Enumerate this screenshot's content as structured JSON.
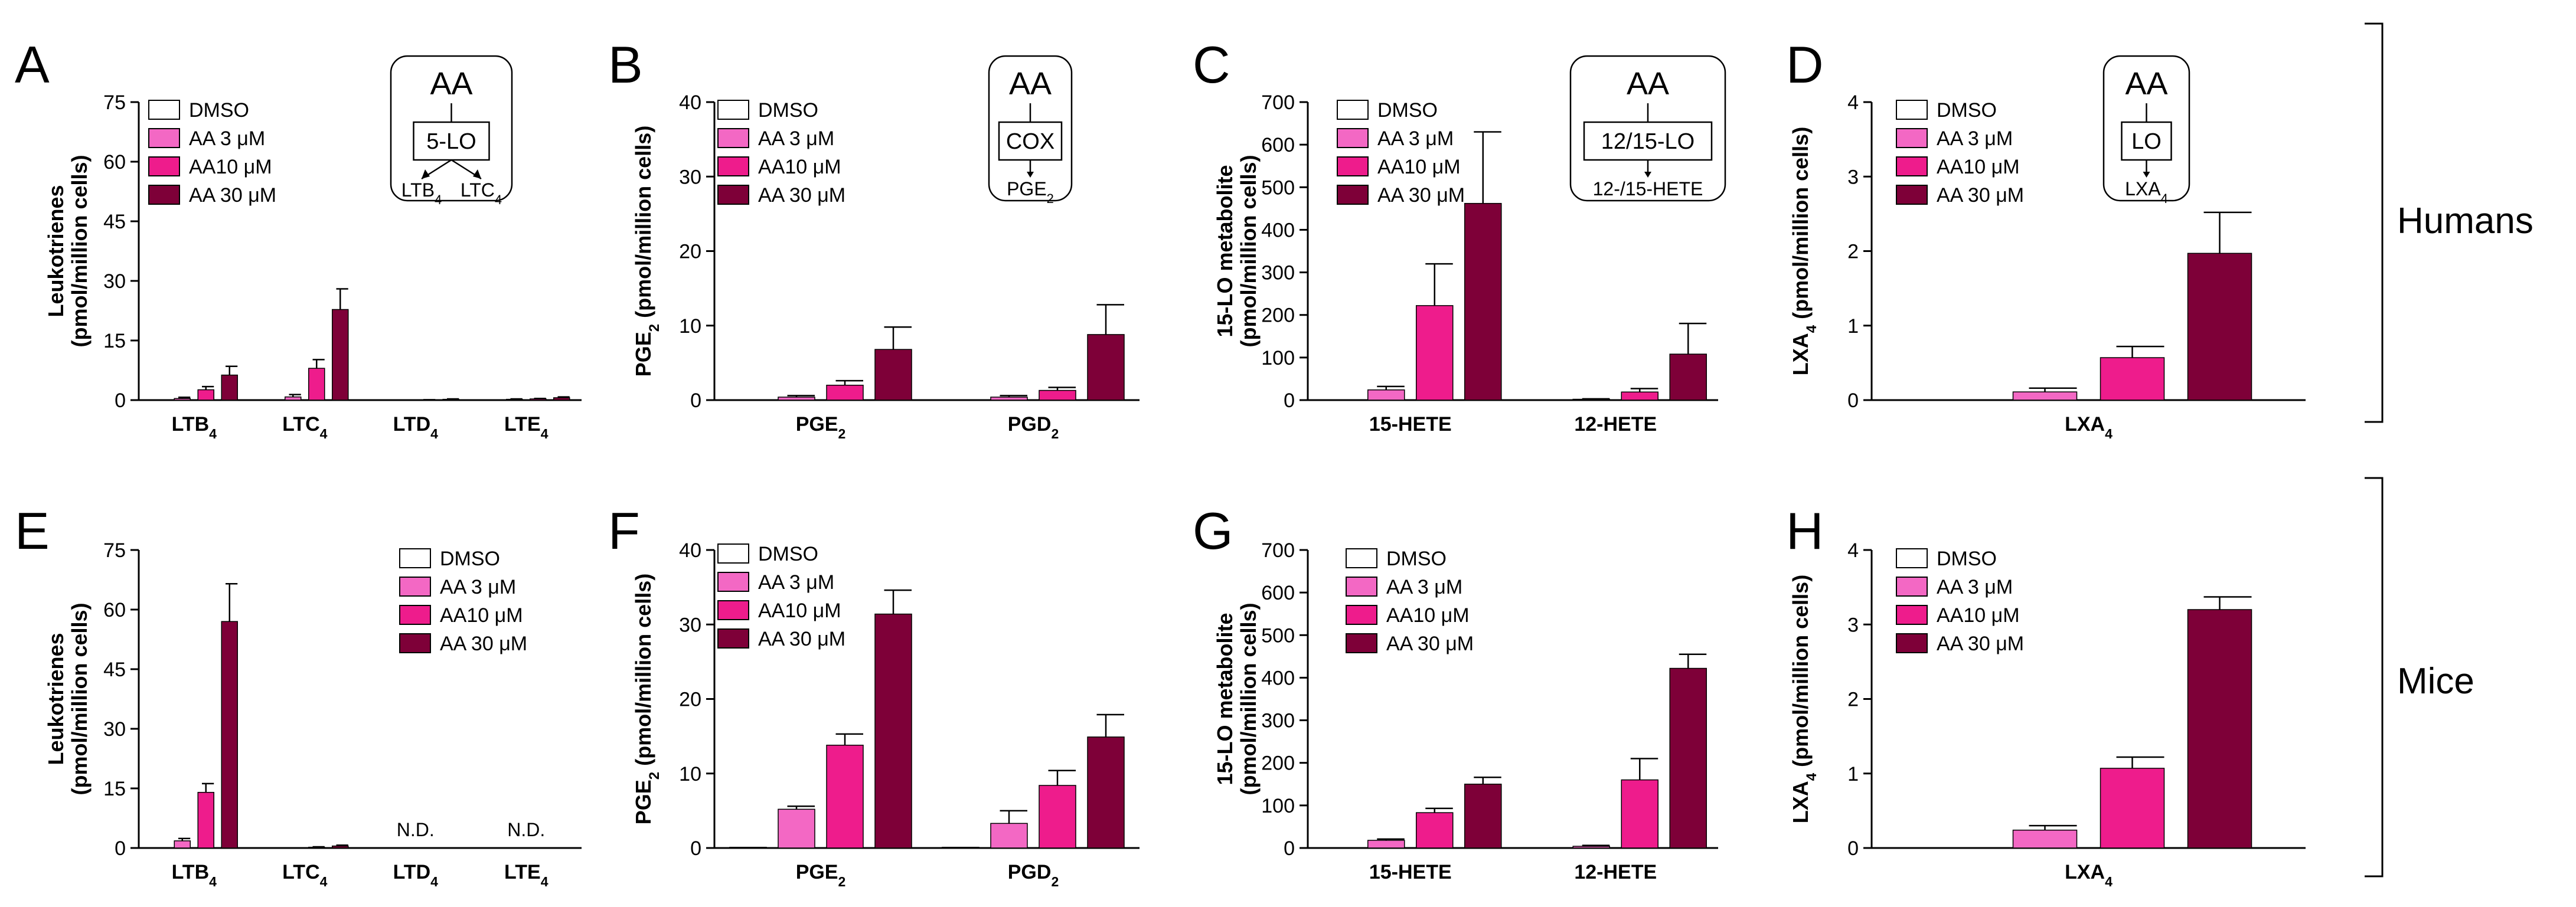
{
  "figure": {
    "group_labels": [
      "Humans",
      "Mice"
    ],
    "colors": {
      "dmso": "#ffffff",
      "aa3": "#f368c4",
      "aa10": "#ee1c8c",
      "aa30": "#7e0038",
      "stroke": "#000000"
    },
    "legend_labels": [
      "DMSO",
      "AA 3 μM",
      "AA10 μM",
      "AA 30 μM"
    ]
  },
  "chart_data": [
    {
      "panel": "A",
      "type": "bar",
      "ylabel": "Leukotrienes",
      "ylabel2": "(pmol/million cells)",
      "ylim": [
        0,
        75
      ],
      "yticks": [
        "0",
        "15",
        "30",
        "45",
        "60",
        "75"
      ],
      "categories": [
        "LTB4",
        "LTC4",
        "LTD4",
        "LTE4"
      ],
      "series": [
        {
          "name": "DMSO",
          "values": [
            0,
            0,
            0,
            0
          ],
          "errors": [
            0,
            0,
            0,
            0
          ]
        },
        {
          "name": "AA 3 μM",
          "values": [
            0.4,
            0.8,
            0,
            0.2
          ],
          "errors": [
            0.3,
            0.6,
            0,
            0.1
          ]
        },
        {
          "name": "AA10 μM",
          "values": [
            2.6,
            8,
            0.05,
            0.3
          ],
          "errors": [
            0.8,
            2.2,
            0.05,
            0.1
          ]
        },
        {
          "name": "AA 30 μM",
          "values": [
            6.3,
            22.8,
            0.2,
            0.6
          ],
          "errors": [
            2.2,
            5.2,
            0.1,
            0.2
          ]
        }
      ],
      "inset": {
        "top": "AA",
        "enzyme": "5-LO",
        "products": [
          "LTB4",
          "LTC4"
        ]
      }
    },
    {
      "panel": "B",
      "type": "bar",
      "ylabel": "PGE2 (pmol/million cells)",
      "ylabel2": "",
      "ylim": [
        0,
        40
      ],
      "yticks": [
        "0",
        "10",
        "20",
        "30",
        "40"
      ],
      "categories": [
        "PGE2",
        "PGD2"
      ],
      "series": [
        {
          "name": "DMSO",
          "values": [
            0,
            0
          ],
          "errors": [
            0,
            0
          ]
        },
        {
          "name": "AA 3 μM",
          "values": [
            0.4,
            0.4
          ],
          "errors": [
            0.2,
            0.2
          ]
        },
        {
          "name": "AA10 μM",
          "values": [
            2,
            1.3
          ],
          "errors": [
            0.6,
            0.4
          ]
        },
        {
          "name": "AA 30 μM",
          "values": [
            6.8,
            8.8
          ],
          "errors": [
            3,
            4
          ]
        }
      ],
      "inset": {
        "top": "AA",
        "enzyme": "COX",
        "products": [
          "PGE2"
        ]
      }
    },
    {
      "panel": "C",
      "type": "bar",
      "ylabel": "15-LO metabolite",
      "ylabel2": "(pmol/million cells)",
      "ylim": [
        0,
        700
      ],
      "yticks": [
        "0",
        "100",
        "200",
        "300",
        "400",
        "500",
        "600",
        "700"
      ],
      "categories": [
        "15-HETE",
        "12-HETE"
      ],
      "series": [
        {
          "name": "DMSO",
          "values": [
            0,
            0
          ],
          "errors": [
            0,
            0
          ]
        },
        {
          "name": "AA 3 μM",
          "values": [
            24,
            2
          ],
          "errors": [
            8,
            1
          ]
        },
        {
          "name": "AA10 μM",
          "values": [
            222,
            19
          ],
          "errors": [
            98,
            8
          ]
        },
        {
          "name": "AA 30 μM",
          "values": [
            462,
            108
          ],
          "errors": [
            168,
            72
          ]
        }
      ],
      "inset": {
        "top": "AA",
        "enzyme": "12/15-LO",
        "products": [
          "12-/15-HETE"
        ]
      }
    },
    {
      "panel": "D",
      "type": "bar",
      "ylabel": "LXA4 (pmol/million cells)",
      "ylabel2": "",
      "ylim": [
        0,
        4
      ],
      "yticks": [
        "0",
        "1",
        "2",
        "3",
        "4"
      ],
      "categories": [
        "LXA4"
      ],
      "series": [
        {
          "name": "DMSO",
          "values": [
            0
          ],
          "errors": [
            0
          ]
        },
        {
          "name": "AA 3 μM",
          "values": [
            0.11
          ],
          "errors": [
            0.05
          ]
        },
        {
          "name": "AA10 μM",
          "values": [
            0.57
          ],
          "errors": [
            0.15
          ]
        },
        {
          "name": "AA 30 μM",
          "values": [
            1.97
          ],
          "errors": [
            0.55
          ]
        }
      ],
      "inset": {
        "top": "AA",
        "enzyme": "LO",
        "products": [
          "LXA4"
        ]
      }
    },
    {
      "panel": "E",
      "type": "bar",
      "ylabel": "Leukotrienes",
      "ylabel2": "(pmol/million cells)",
      "ylim": [
        0,
        75
      ],
      "yticks": [
        "0",
        "15",
        "30",
        "45",
        "60",
        "75"
      ],
      "categories": [
        "LTB4",
        "LTC4",
        "LTD4",
        "LTE4"
      ],
      "series": [
        {
          "name": "DMSO",
          "values": [
            0,
            0,
            0,
            0
          ],
          "errors": [
            0,
            0,
            0,
            0
          ]
        },
        {
          "name": "AA 3 μM",
          "values": [
            1.8,
            0,
            0,
            0
          ],
          "errors": [
            0.6,
            0,
            0,
            0
          ]
        },
        {
          "name": "AA10 μM",
          "values": [
            14,
            0.2,
            0,
            0
          ],
          "errors": [
            2.2,
            0.1,
            0,
            0
          ]
        },
        {
          "name": "AA 30 μM",
          "values": [
            57,
            0.5,
            0,
            0
          ],
          "errors": [
            9.5,
            0.2,
            0,
            0
          ]
        }
      ],
      "annotations": [
        {
          "category": "LTD4",
          "text": "N.D."
        },
        {
          "category": "LTE4",
          "text": "N.D."
        }
      ]
    },
    {
      "panel": "F",
      "type": "bar",
      "ylabel": "PGE2 (pmol/million cells)",
      "ylabel2": "",
      "ylim": [
        0,
        40
      ],
      "yticks": [
        "0",
        "10",
        "20",
        "30",
        "40"
      ],
      "categories": [
        "PGE2",
        "PGD2"
      ],
      "series": [
        {
          "name": "DMSO",
          "values": [
            0.1,
            0.1
          ],
          "errors": [
            0,
            0
          ]
        },
        {
          "name": "AA 3 μM",
          "values": [
            5.2,
            3.3
          ],
          "errors": [
            0.4,
            1.7
          ]
        },
        {
          "name": "AA10 μM",
          "values": [
            13.8,
            8.4
          ],
          "errors": [
            1.5,
            2
          ]
        },
        {
          "name": "AA 30 μM",
          "values": [
            31.4,
            14.9
          ],
          "errors": [
            3.2,
            3
          ]
        }
      ]
    },
    {
      "panel": "G",
      "type": "bar",
      "ylabel": "15-LO metabolite",
      "ylabel2": "(pmol/million cells)",
      "ylim": [
        0,
        700
      ],
      "yticks": [
        "0",
        "100",
        "200",
        "300",
        "400",
        "500",
        "600",
        "700"
      ],
      "categories": [
        "15-HETE",
        "12-HETE"
      ],
      "series": [
        {
          "name": "DMSO",
          "values": [
            0,
            0
          ],
          "errors": [
            0,
            0
          ]
        },
        {
          "name": "AA 3 μM",
          "values": [
            18,
            4
          ],
          "errors": [
            3,
            2
          ]
        },
        {
          "name": "AA10 μM",
          "values": [
            83,
            160
          ],
          "errors": [
            10,
            50
          ]
        },
        {
          "name": "AA 30 μM",
          "values": [
            150,
            422
          ],
          "errors": [
            16,
            33
          ]
        }
      ]
    },
    {
      "panel": "H",
      "type": "bar",
      "ylabel": "LXA4 (pmol/million cells)",
      "ylabel2": "",
      "ylim": [
        0,
        4
      ],
      "yticks": [
        "0",
        "1",
        "2",
        "3",
        "4"
      ],
      "categories": [
        "LXA4"
      ],
      "series": [
        {
          "name": "DMSO",
          "values": [
            0
          ],
          "errors": [
            0
          ]
        },
        {
          "name": "AA 3 μM",
          "values": [
            0.24
          ],
          "errors": [
            0.06
          ]
        },
        {
          "name": "AA10 μM",
          "values": [
            1.07
          ],
          "errors": [
            0.15
          ]
        },
        {
          "name": "AA 30 μM",
          "values": [
            3.2
          ],
          "errors": [
            0.17
          ]
        }
      ]
    }
  ]
}
